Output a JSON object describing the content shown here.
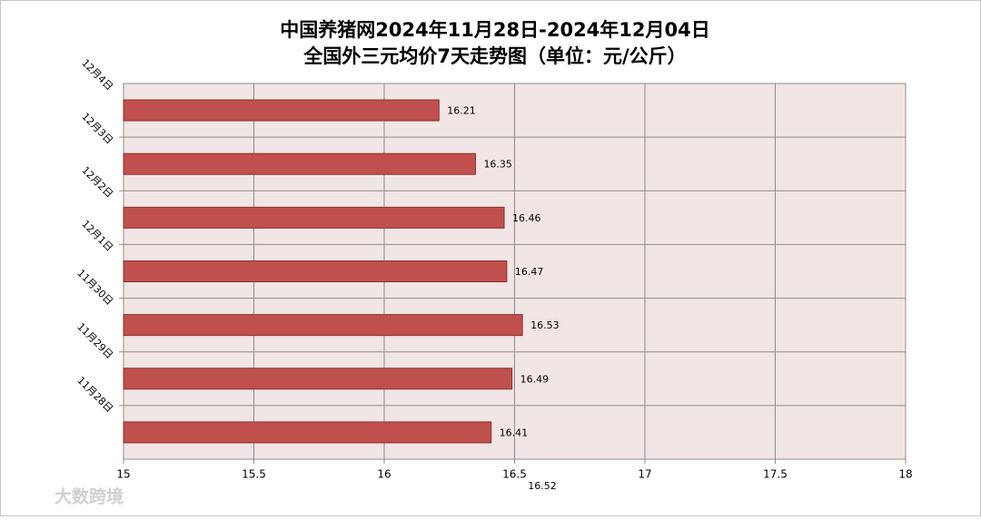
{
  "chart_data": {
    "type": "hbar",
    "title": "中国养猪网2024年11月28日-2024年12月04日",
    "subtitle": "全国外三元均价7天走势图（单位：元/公斤）",
    "categories": [
      "12月4日",
      "12月3日",
      "12月2日",
      "12月1日",
      "11月30日",
      "11月29日",
      "11月28日"
    ],
    "values": [
      16.21,
      16.35,
      16.46,
      16.47,
      16.53,
      16.49,
      16.41
    ],
    "color": "#c0504d",
    "xlim": [
      15,
      18
    ],
    "xticks": [
      15,
      15.5,
      16,
      16.5,
      17,
      17.5,
      18
    ],
    "grid": true,
    "annotation": 16.52,
    "watermark": "大数跨境"
  }
}
